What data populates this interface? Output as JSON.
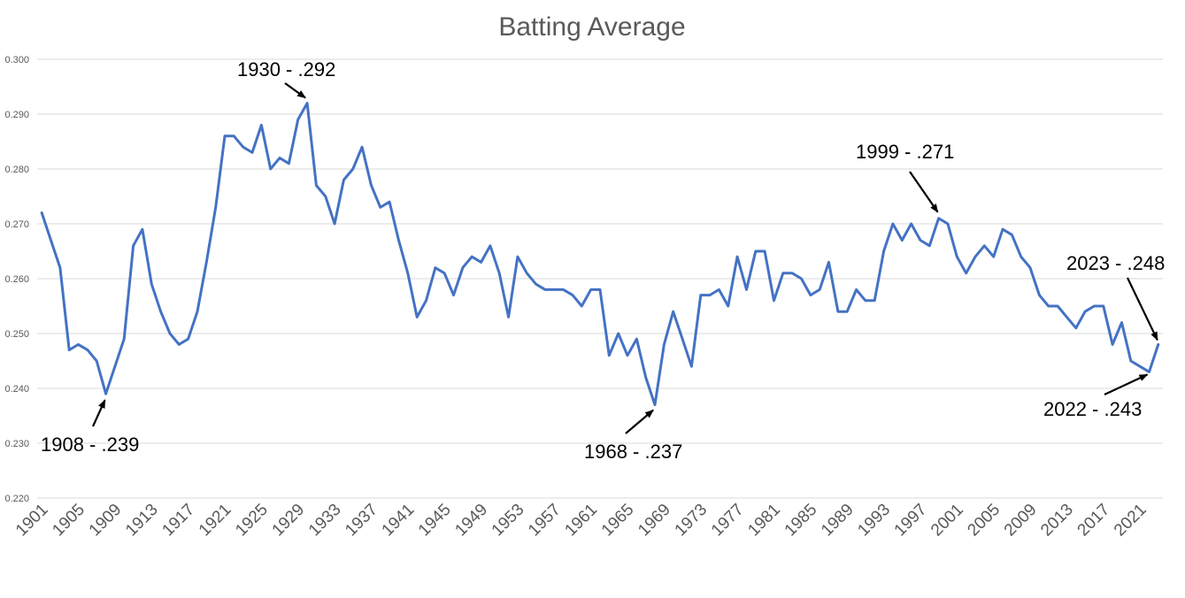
{
  "chart_data": {
    "type": "line",
    "title": "Batting Average",
    "xlabel": "",
    "ylabel": "",
    "ylim": [
      0.22,
      0.3
    ],
    "yticks": [
      "0.220",
      "0.230",
      "0.240",
      "0.250",
      "0.260",
      "0.270",
      "0.280",
      "0.290",
      "0.300"
    ],
    "ytick_values": [
      0.22,
      0.23,
      0.24,
      0.25,
      0.26,
      0.27,
      0.28,
      0.29,
      0.3
    ],
    "xlim": [
      1901,
      2023
    ],
    "xticks": [
      "1901",
      "1905",
      "1909",
      "1913",
      "1917",
      "1921",
      "1925",
      "1929",
      "1933",
      "1937",
      "1941",
      "1945",
      "1949",
      "1953",
      "1957",
      "1961",
      "1965",
      "1969",
      "1973",
      "1977",
      "1981",
      "1985",
      "1989",
      "1993",
      "1997",
      "2001",
      "2005",
      "2009",
      "2013",
      "2017",
      "2021"
    ],
    "grid": true,
    "legend": "none",
    "line_color": "#4472c4",
    "series": [
      {
        "x": [
          1901,
          1902,
          1903,
          1904,
          1905,
          1906,
          1907,
          1908,
          1909,
          1910,
          1911,
          1912,
          1913,
          1914,
          1915,
          1916,
          1917,
          1918,
          1919,
          1920,
          1921,
          1922,
          1923,
          1924,
          1925,
          1926,
          1927,
          1928,
          1929,
          1930,
          1931,
          1932,
          1933,
          1934,
          1935,
          1936,
          1937,
          1938,
          1939,
          1940,
          1941,
          1942,
          1943,
          1944,
          1945,
          1946,
          1947,
          1948,
          1949,
          1950,
          1951,
          1952,
          1953,
          1954,
          1955,
          1956,
          1957,
          1958,
          1959,
          1960,
          1961,
          1962,
          1963,
          1964,
          1965,
          1966,
          1967,
          1968,
          1969,
          1970,
          1971,
          1972,
          1973,
          1974,
          1975,
          1976,
          1977,
          1978,
          1979,
          1980,
          1981,
          1982,
          1983,
          1984,
          1985,
          1986,
          1987,
          1988,
          1989,
          1990,
          1991,
          1992,
          1993,
          1994,
          1995,
          1996,
          1997,
          1998,
          1999,
          2000,
          2001,
          2002,
          2003,
          2004,
          2005,
          2006,
          2007,
          2008,
          2009,
          2010,
          2011,
          2012,
          2013,
          2014,
          2015,
          2016,
          2017,
          2018,
          2019,
          2020,
          2021,
          2022,
          2023
        ],
        "values": [
          0.272,
          0.267,
          0.262,
          0.247,
          0.248,
          0.247,
          0.245,
          0.239,
          0.244,
          0.249,
          0.266,
          0.269,
          0.259,
          0.254,
          0.25,
          0.248,
          0.249,
          0.254,
          0.263,
          0.273,
          0.286,
          0.286,
          0.284,
          0.283,
          0.288,
          0.28,
          0.282,
          0.281,
          0.289,
          0.292,
          0.277,
          0.275,
          0.27,
          0.278,
          0.28,
          0.284,
          0.277,
          0.273,
          0.274,
          0.267,
          0.261,
          0.253,
          0.256,
          0.262,
          0.261,
          0.257,
          0.262,
          0.264,
          0.263,
          0.266,
          0.261,
          0.253,
          0.264,
          0.261,
          0.259,
          0.258,
          0.258,
          0.258,
          0.257,
          0.255,
          0.258,
          0.258,
          0.246,
          0.25,
          0.246,
          0.249,
          0.242,
          0.237,
          0.248,
          0.254,
          0.249,
          0.244,
          0.257,
          0.257,
          0.258,
          0.255,
          0.264,
          0.258,
          0.265,
          0.265,
          0.256,
          0.261,
          0.261,
          0.26,
          0.257,
          0.258,
          0.263,
          0.254,
          0.254,
          0.258,
          0.256,
          0.256,
          0.265,
          0.27,
          0.267,
          0.27,
          0.267,
          0.266,
          0.271,
          0.27,
          0.264,
          0.261,
          0.264,
          0.266,
          0.264,
          0.269,
          0.268,
          0.264,
          0.262,
          0.257,
          0.255,
          0.255,
          0.253,
          0.251,
          0.254,
          0.255,
          0.255,
          0.248,
          0.252,
          0.245,
          0.244,
          0.243,
          0.248
        ]
      }
    ],
    "annotations": [
      {
        "text": "1930 - .292",
        "x": 1930,
        "y": 0.292
      },
      {
        "text": "1908 - .239",
        "x": 1908,
        "y": 0.239
      },
      {
        "text": "1968 - .237",
        "x": 1968,
        "y": 0.237
      },
      {
        "text": "1999 - .271",
        "x": 1999,
        "y": 0.271
      },
      {
        "text": "2023 - .248",
        "x": 2023,
        "y": 0.248
      },
      {
        "text": "2022 - .243",
        "x": 2022,
        "y": 0.243
      }
    ]
  }
}
